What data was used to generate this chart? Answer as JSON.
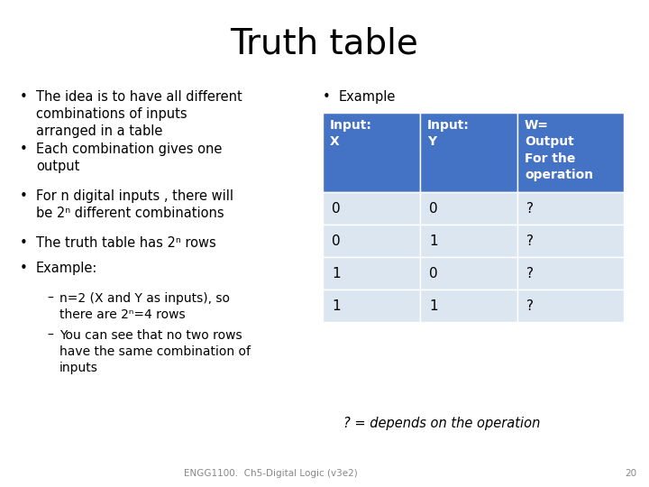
{
  "title": "Truth table",
  "title_fontsize": 28,
  "background_color": "#ffffff",
  "bullet_points": [
    "The idea is to have all different\ncombinations of inputs\narranged in a table",
    "Each combination gives one\noutput",
    "For n digital inputs , there will\nbe 2ⁿ different combinations",
    "The truth table has 2ⁿ rows",
    "Example:"
  ],
  "sub_bullets": [
    "n=2 (X and Y as inputs), so\nthere are 2ⁿ=4 rows",
    "You can see that no two rows\nhave the same combination of\ninputs"
  ],
  "example_label": "Example",
  "table_header": [
    "Input:\nX",
    "Input:\nY",
    "W=\nOutput\nFor the\noperation"
  ],
  "table_data": [
    [
      "0",
      "0",
      "?"
    ],
    [
      "0",
      "1",
      "?"
    ],
    [
      "1",
      "0",
      "?"
    ],
    [
      "1",
      "1",
      "?"
    ]
  ],
  "header_bg": "#4472c4",
  "header_fg": "#ffffff",
  "row_bg": "#dce6f1",
  "row_fg": "#000000",
  "footnote": "? = depends on the operation",
  "footer": "ENGG1100.  Ch5-Digital Logic (v3e2)",
  "footer_page": "20",
  "bullet_fontsize": 10.5,
  "sub_bullet_fontsize": 10
}
